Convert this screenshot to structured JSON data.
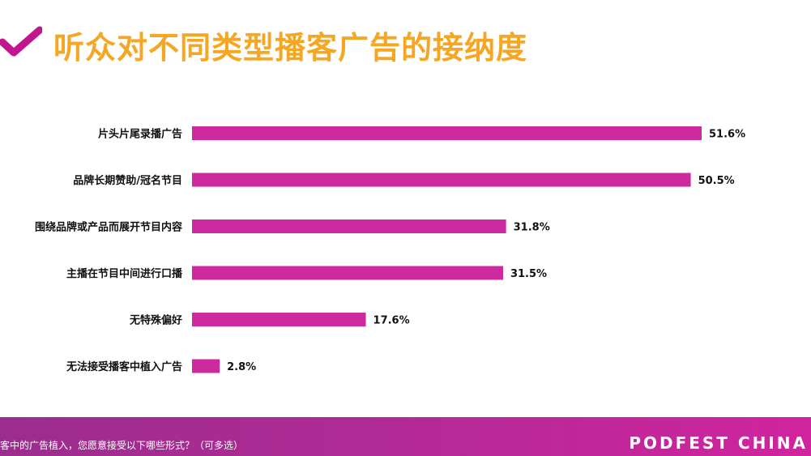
{
  "page": {
    "title": "听众对不同类型播客广告的接纳度",
    "footer_question": "客中的广告植入，您愿意接受以下哪些形式？（可多选）",
    "brand": "PODFEST CHINA",
    "colors": {
      "title": "#F5A623",
      "check": "#C2168F",
      "bar": "#CC2A9E",
      "footer": "#B02A95"
    }
  },
  "chart_data": {
    "type": "bar",
    "orientation": "horizontal",
    "categories": [
      "片头片尾录播广告",
      "品牌长期赞助/冠名节目",
      "围绕品牌或产品而展开节目内容",
      "主播在节目中间进行口播",
      "无特殊偏好",
      "无法接受播客中植入广告"
    ],
    "values": [
      51.6,
      50.5,
      31.8,
      31.5,
      17.6,
      2.8
    ],
    "value_labels": [
      "51.6%",
      "50.5%",
      "31.8%",
      "31.5%",
      "17.6%",
      "2.8%"
    ],
    "unit": "%",
    "xlim": [
      0,
      55
    ],
    "grid": false,
    "legend": "none"
  }
}
